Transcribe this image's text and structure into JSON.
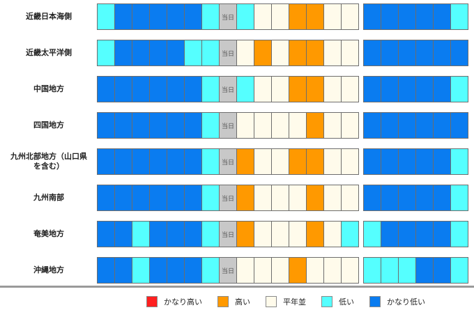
{
  "colors": {
    "vhigh": "#ff2020",
    "high": "#ff9900",
    "normal": "#fffbeb",
    "low": "#55ffff",
    "vlow": "#0a7cf0",
    "today": "#c8c8c8"
  },
  "today_label": "当日",
  "rows": [
    {
      "region": "近畿日本海側",
      "cells_a": [
        "low",
        "vlow",
        "vlow",
        "vlow",
        "vlow",
        "vlow",
        "low",
        "today",
        "low",
        "normal",
        "normal",
        "high",
        "high",
        "normal",
        "normal"
      ],
      "cells_b": [
        "vlow",
        "vlow",
        "vlow",
        "vlow",
        "vlow",
        "low"
      ]
    },
    {
      "region": "近畿太平洋側",
      "cells_a": [
        "low",
        "vlow",
        "vlow",
        "vlow",
        "vlow",
        "low",
        "low",
        "today",
        "normal",
        "high",
        "normal",
        "high",
        "high",
        "normal",
        "normal"
      ],
      "cells_b": [
        "vlow",
        "vlow",
        "vlow",
        "vlow",
        "vlow",
        "vlow"
      ]
    },
    {
      "region": "中国地方",
      "cells_a": [
        "vlow",
        "vlow",
        "vlow",
        "vlow",
        "vlow",
        "vlow",
        "low",
        "today",
        "low",
        "normal",
        "normal",
        "high",
        "high",
        "normal",
        "normal"
      ],
      "cells_b": [
        "vlow",
        "vlow",
        "vlow",
        "vlow",
        "vlow",
        "low"
      ]
    },
    {
      "region": "四国地方",
      "cells_a": [
        "vlow",
        "vlow",
        "vlow",
        "vlow",
        "vlow",
        "vlow",
        "low",
        "today",
        "normal",
        "normal",
        "normal",
        "normal",
        "high",
        "normal",
        "normal"
      ],
      "cells_b": [
        "vlow",
        "vlow",
        "vlow",
        "vlow",
        "vlow",
        "vlow"
      ]
    },
    {
      "region": "九州北部地方（山口県\nを含む）",
      "cells_a": [
        "vlow",
        "vlow",
        "vlow",
        "vlow",
        "vlow",
        "vlow",
        "low",
        "today",
        "high",
        "normal",
        "normal",
        "high",
        "high",
        "normal",
        "normal"
      ],
      "cells_b": [
        "vlow",
        "vlow",
        "vlow",
        "vlow",
        "vlow",
        "low"
      ]
    },
    {
      "region": "九州南部",
      "cells_a": [
        "vlow",
        "vlow",
        "vlow",
        "vlow",
        "vlow",
        "vlow",
        "low",
        "today",
        "high",
        "normal",
        "normal",
        "normal",
        "high",
        "normal",
        "normal"
      ],
      "cells_b": [
        "vlow",
        "vlow",
        "vlow",
        "vlow",
        "vlow",
        "low"
      ]
    },
    {
      "region": "奄美地方",
      "cells_a": [
        "vlow",
        "vlow",
        "low",
        "vlow",
        "vlow",
        "vlow",
        "low",
        "today",
        "high",
        "normal",
        "normal",
        "normal",
        "high",
        "normal",
        "low"
      ],
      "cells_b": [
        "low",
        "vlow",
        "vlow",
        "vlow",
        "vlow",
        "low"
      ]
    },
    {
      "region": "沖縄地方",
      "cells_a": [
        "vlow",
        "vlow",
        "low",
        "vlow",
        "vlow",
        "vlow",
        "low",
        "today",
        "normal",
        "normal",
        "normal",
        "high",
        "normal",
        "normal",
        "normal"
      ],
      "cells_b": [
        "low",
        "low",
        "low",
        "vlow",
        "vlow",
        "low"
      ]
    }
  ],
  "legend": [
    {
      "key": "vhigh",
      "label": "かなり高い"
    },
    {
      "key": "high",
      "label": "高い"
    },
    {
      "key": "normal",
      "label": "平年並"
    },
    {
      "key": "low",
      "label": "低い"
    },
    {
      "key": "vlow",
      "label": "かなり低い"
    }
  ]
}
